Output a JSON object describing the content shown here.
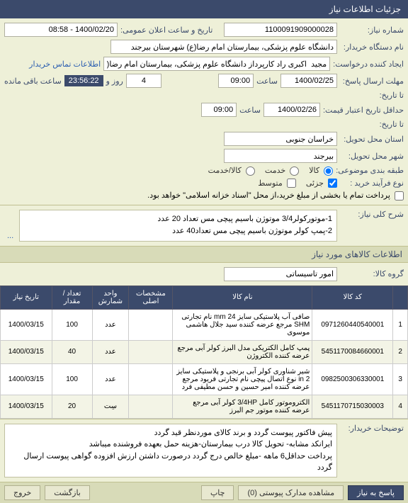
{
  "panel_title": "جزئیات اطلاعات نیاز",
  "fields": {
    "need_no_label": "شماره نیاز:",
    "need_no_value": "1100091909000028",
    "pub_date_label": "تاریخ و ساعت اعلان عمومی:",
    "pub_date_value": "1400/02/20 - 08:58",
    "buyer_label": "نام دستگاه خریدار:",
    "buyer_value": "دانشگاه علوم پزشکی، بیمارستان امام رضا(ع) شهرستان بیرجند",
    "creator_label": "ایجاد کننده درخواست:",
    "creator_value": "مجید  اکبری راد کارپرداز دانشگاه علوم پزشکی، بیمارستان امام رضا(ع) شهرستا",
    "contact_link": "اطلاعات تماس خریدار",
    "deadline_label": "مهلت ارسال پاسخ:",
    "deadline_date": "1400/02/25",
    "deadline_time": "09:00",
    "time_word": "ساعت",
    "day_count_lbl": "روز و",
    "days": "4",
    "countdown": "23:56:22",
    "remain_label": "ساعت باقی مانده",
    "to_date_label": "تا تاریخ:",
    "min_valid_label": "حداقل تاریخ اعتبار قیمت:",
    "min_valid_date": "1400/02/26",
    "min_valid_time": "09:00",
    "to_date2_label": "تا تاریخ:",
    "delivery_state_label": "استان محل تحویل:",
    "delivery_state_value": "خراسان جنوبی",
    "delivery_city_label": "شهر محل تحویل:",
    "delivery_city_value": "بیرجند",
    "budget_label": "طبقه بندی موضوعی:",
    "goods": "کالا",
    "service": "خدمت",
    "both": "کالا/خدمت",
    "buy_type_label": "نوع فرآیند خرید :",
    "small": "جزئی",
    "medium": "متوسط",
    "pay_note": "پرداخت تمام یا بخشی از مبلغ خرید،از محل \"اسناد خزانه اسلامی\" خواهد بود."
  },
  "desc": {
    "label": "شرح کلی نیاز:",
    "line1": "1-موتورکولر3/4  موتوژن  باسیم پیچی مس تعداد 20 عدد",
    "line2": "2-پمپ کولر   موتوژن   باسیم پیچی مس تعداد40 عدد",
    "expand": "..."
  },
  "items_header": "اطلاعات کالاهای مورد نیاز",
  "group": {
    "label": "گروه کالا:",
    "value": "امور تاسیساتی"
  },
  "table": {
    "cols": [
      "",
      "کد کالا",
      "نام کالا",
      "مشخصات اصلی",
      "واحد شمارش",
      "تعداد / مقدار",
      "تاریخ نیاز"
    ],
    "rows": [
      {
        "idx": "1",
        "code": "0971260440540001",
        "name": "صافی آب پلاستیکی سایز 24 mm نام تجارتی SHM مرجع عرضه کننده سید جلال هاشمی موسوی",
        "spec": "",
        "unit": "عدد",
        "qty": "100",
        "date": "1400/03/15"
      },
      {
        "idx": "2",
        "code": "5451170084660001",
        "name": "پمپ کامل الکتریکی مدل البرز کولر آبی مرجع عرضه کننده الکتروژن",
        "spec": "",
        "unit": "عدد",
        "qty": "40",
        "date": "1400/03/15"
      },
      {
        "idx": "3",
        "code": "0982500306330001",
        "name": "شیر شناوری کولر آبی برنجی و پلاستیکی سایز 2 in نوع اتصال پیچی نام تجارتی فریود مرجع عرضه کننده امیر حسین و حسن مطیفی فرد",
        "spec": "",
        "unit": "عدد",
        "qty": "100",
        "date": "1400/03/15"
      },
      {
        "idx": "4",
        "code": "5451170715030003",
        "name": "الکتروموتور کامل 3/4HP کولر آبی مرجع عرضه کننده موتور جم البرز",
        "spec": "",
        "unit": "سِت",
        "qty": "20",
        "date": "1400/03/15"
      }
    ]
  },
  "explain": {
    "label": "توضیحات خریدار:",
    "text": "پیش فاکتور پیوست گردد و برند کالای موردنظر قید گردد\nایرانکد مشابه- تحویل کالا درب بیمارستان-هزینه حمل بعهده فروشنده میباشد\nپرداخت حداقل6 ماهه -مبلغ خالص درج گردد درصورت داشتن ارزش افزوده گواهی پیوست ارسال گردد"
  },
  "footer": {
    "respond": "پاسخ به نیاز",
    "attach": "مشاهده مدارک پیوستی (0)",
    "print": "چاپ",
    "back": "بازگشت",
    "exit": "خروج"
  }
}
